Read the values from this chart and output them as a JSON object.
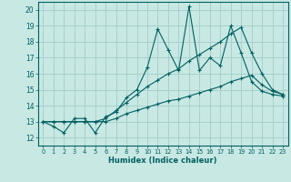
{
  "title": "",
  "xlabel": "Humidex (Indice chaleur)",
  "xlim": [
    -0.5,
    23.5
  ],
  "ylim": [
    11.5,
    20.5
  ],
  "xticks": [
    0,
    1,
    2,
    3,
    4,
    5,
    6,
    7,
    8,
    9,
    10,
    11,
    12,
    13,
    14,
    15,
    16,
    17,
    18,
    19,
    20,
    21,
    22,
    23
  ],
  "yticks": [
    12,
    13,
    14,
    15,
    16,
    17,
    18,
    19,
    20
  ],
  "bg_color": "#c8e8e4",
  "grid_color": "#a8d0cc",
  "line_color": "#006060",
  "lines": [
    [
      13.0,
      12.7,
      12.3,
      13.2,
      13.2,
      12.3,
      13.3,
      13.6,
      14.5,
      15.0,
      16.4,
      18.8,
      17.5,
      16.2,
      20.2,
      16.2,
      17.0,
      16.5,
      19.0,
      17.3,
      15.5,
      14.9,
      14.7,
      14.6
    ],
    [
      13.0,
      13.0,
      13.0,
      13.0,
      13.0,
      13.0,
      13.2,
      13.7,
      14.2,
      14.7,
      15.2,
      15.6,
      16.0,
      16.3,
      16.8,
      17.2,
      17.6,
      18.0,
      18.5,
      18.9,
      17.3,
      16.0,
      15.0,
      14.7
    ],
    [
      13.0,
      13.0,
      13.0,
      13.0,
      13.0,
      13.0,
      13.0,
      13.2,
      13.5,
      13.7,
      13.9,
      14.1,
      14.3,
      14.4,
      14.6,
      14.8,
      15.0,
      15.2,
      15.5,
      15.7,
      15.9,
      15.3,
      14.9,
      14.7
    ]
  ]
}
